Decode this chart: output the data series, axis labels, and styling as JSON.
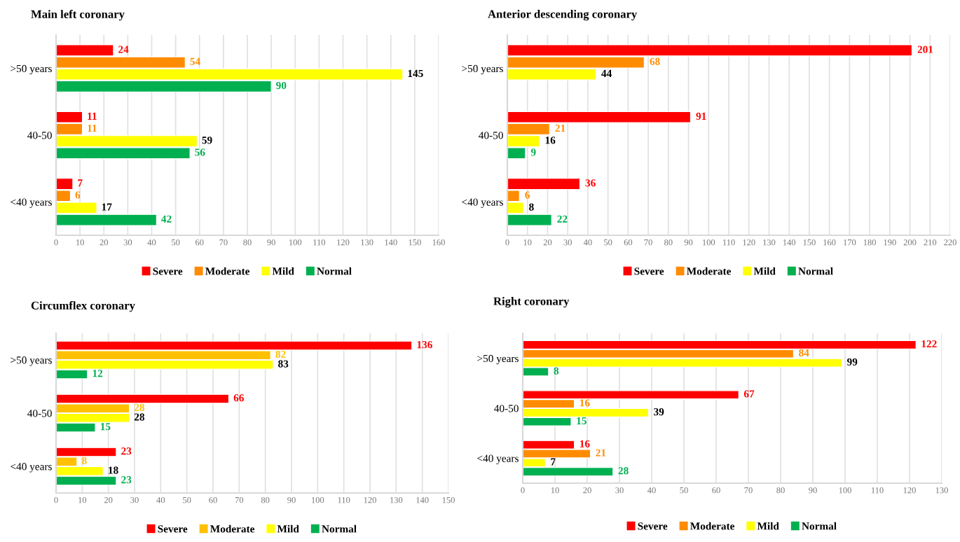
{
  "chart_data": [
    {
      "type": "bar",
      "orientation": "horizontal",
      "title": "Main left coronary",
      "categories": [
        ">50 years",
        "40-50",
        "<40 years"
      ],
      "series": [
        {
          "name": "Severe",
          "color": "#ff0000",
          "values": [
            24,
            11,
            7
          ]
        },
        {
          "name": "Moderate",
          "color": "#ff8c00",
          "values": [
            54,
            11,
            6
          ]
        },
        {
          "name": "Mild",
          "color": "#ffff00",
          "values": [
            145,
            59,
            17
          ]
        },
        {
          "name": "Normal",
          "color": "#00b050",
          "values": [
            90,
            56,
            42
          ]
        }
      ],
      "xlim": [
        0,
        160
      ],
      "xticks": [
        0,
        10,
        20,
        30,
        40,
        50,
        60,
        70,
        80,
        90,
        100,
        110,
        120,
        130,
        140,
        150,
        160
      ],
      "grid": "x",
      "legend": "bottom",
      "data_labels": true
    },
    {
      "type": "bar",
      "orientation": "horizontal",
      "title": "Anterior descending coronary",
      "categories": [
        ">50 years",
        "40-50",
        "<40 years"
      ],
      "series": [
        {
          "name": "Severe",
          "color": "#ff0000",
          "values": [
            201,
            91,
            36
          ]
        },
        {
          "name": "Moderate",
          "color": "#ff8c00",
          "values": [
            68,
            21,
            6
          ]
        },
        {
          "name": "Mild",
          "color": "#ffff00",
          "values": [
            44,
            16,
            8
          ]
        },
        {
          "name": "Normal",
          "color": "#00b050",
          "values": [
            null,
            9,
            22
          ]
        }
      ],
      "xlim": [
        0,
        220
      ],
      "xticks": [
        0,
        10,
        20,
        30,
        40,
        50,
        60,
        70,
        80,
        90,
        100,
        110,
        120,
        130,
        140,
        150,
        160,
        170,
        180,
        190,
        200,
        210,
        220
      ],
      "grid": "x",
      "legend": "bottom",
      "data_labels": true
    },
    {
      "type": "bar",
      "orientation": "horizontal",
      "title": "Circumflex coronary",
      "categories": [
        ">50 years",
        "40-50",
        "<40 years"
      ],
      "series": [
        {
          "name": "Severe",
          "color": "#ff0000",
          "values": [
            136,
            66,
            23
          ]
        },
        {
          "name": "Moderate",
          "color": "#ffc000",
          "values": [
            82,
            28,
            8
          ]
        },
        {
          "name": "Mild",
          "color": "#ffff00",
          "values": [
            83,
            28,
            18
          ]
        },
        {
          "name": "Normal",
          "color": "#00b050",
          "values": [
            12,
            15,
            23
          ]
        }
      ],
      "xlim": [
        0,
        150
      ],
      "xticks": [
        0,
        10,
        20,
        30,
        40,
        50,
        60,
        70,
        80,
        90,
        100,
        110,
        120,
        130,
        140,
        150
      ],
      "grid": "x",
      "legend": "bottom",
      "data_labels": true
    },
    {
      "type": "bar",
      "orientation": "horizontal",
      "title": "Right coronary",
      "categories": [
        ">50 years",
        "40-50",
        "<40 years"
      ],
      "series": [
        {
          "name": "Severe",
          "color": "#ff0000",
          "values": [
            122,
            67,
            16
          ]
        },
        {
          "name": "Moderate",
          "color": "#ff8c00",
          "values": [
            84,
            16,
            21
          ]
        },
        {
          "name": "Mild",
          "color": "#ffff00",
          "values": [
            99,
            39,
            7
          ]
        },
        {
          "name": "Normal",
          "color": "#00b050",
          "values": [
            8,
            15,
            28
          ]
        }
      ],
      "xlim": [
        0,
        130
      ],
      "xticks": [
        0,
        10,
        20,
        30,
        40,
        50,
        60,
        70,
        80,
        90,
        100,
        110,
        120,
        130
      ],
      "grid": "x",
      "legend": "bottom",
      "data_labels": true
    }
  ]
}
